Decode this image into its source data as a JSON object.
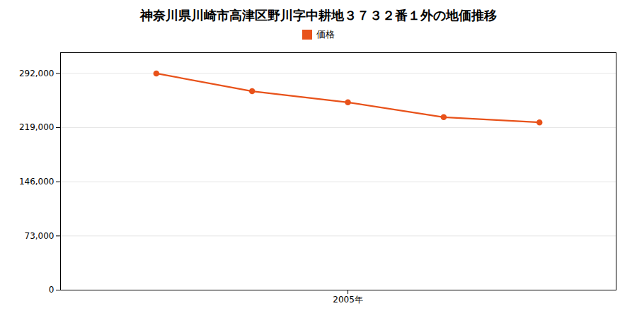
{
  "chart_data": {
    "type": "line",
    "title": "神奈川県川崎市高津区野川字中耕地３７３２番１外の地価推移",
    "x": [
      2003,
      2004,
      2005,
      2006,
      2007
    ],
    "series": [
      {
        "name": "価格",
        "color": "#E8521A",
        "values": [
          292000,
          268000,
          253000,
          233000,
          226000
        ],
        "marker": "circle"
      }
    ],
    "xlim": [
      2002.0,
      2007.8
    ],
    "xticks": [
      {
        "value": 2005,
        "label": "2005年"
      }
    ],
    "ylim": [
      0,
      320000
    ],
    "yticks": [
      0,
      {
        "value": 73000,
        "label": "73,000"
      },
      {
        "value": 146000,
        "label": "146,000"
      },
      {
        "value": 219000,
        "label": "219,000"
      },
      {
        "value": 292000,
        "label": "292,000"
      }
    ],
    "grid": "y",
    "legend": "top"
  }
}
